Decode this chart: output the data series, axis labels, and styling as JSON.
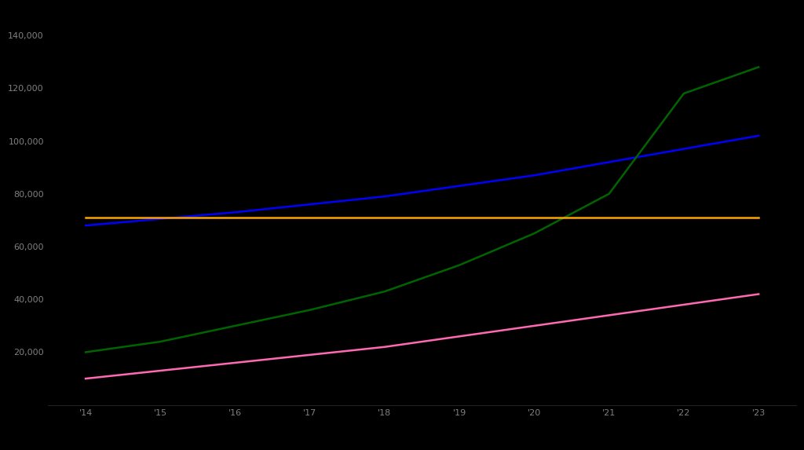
{
  "years": [
    2014,
    2015,
    2016,
    2017,
    2018,
    2019,
    2020,
    2021,
    2022,
    2023
  ],
  "blue_line": [
    68000,
    70500,
    73000,
    76000,
    79000,
    83000,
    87000,
    92000,
    97000,
    102000
  ],
  "green_line": [
    20000,
    24000,
    30000,
    36000,
    43000,
    53000,
    65000,
    80000,
    118000,
    128000
  ],
  "orange_line": [
    71000,
    71000,
    71000,
    71000,
    71000,
    71000,
    71000,
    71000,
    71000,
    71000
  ],
  "pink_line": [
    10000,
    13000,
    16000,
    19000,
    22000,
    26000,
    30000,
    34000,
    38000,
    42000
  ],
  "blue_color": "#0000ff",
  "green_color": "#006400",
  "orange_color": "#FFA500",
  "pink_color": "#FF69B4",
  "background_color": "#000000",
  "text_color": "#808080",
  "ylim": [
    0,
    150000
  ],
  "ytick_values": [
    20000,
    40000,
    60000,
    80000,
    100000,
    120000,
    140000
  ],
  "ytick_labels": [
    "20,000",
    "40,000",
    "60,000",
    "80,000",
    "100,000",
    "120,000",
    "140,000"
  ],
  "xtick_labels": [
    "'14",
    "'15",
    "'16",
    "'17",
    "'18",
    "'19",
    "'20",
    "'21",
    "'22",
    "'23"
  ],
  "xlim": [
    2013.5,
    2023.5
  ],
  "line_width": 1.8,
  "figsize": [
    10.24,
    5.73
  ],
  "dpi": 100
}
